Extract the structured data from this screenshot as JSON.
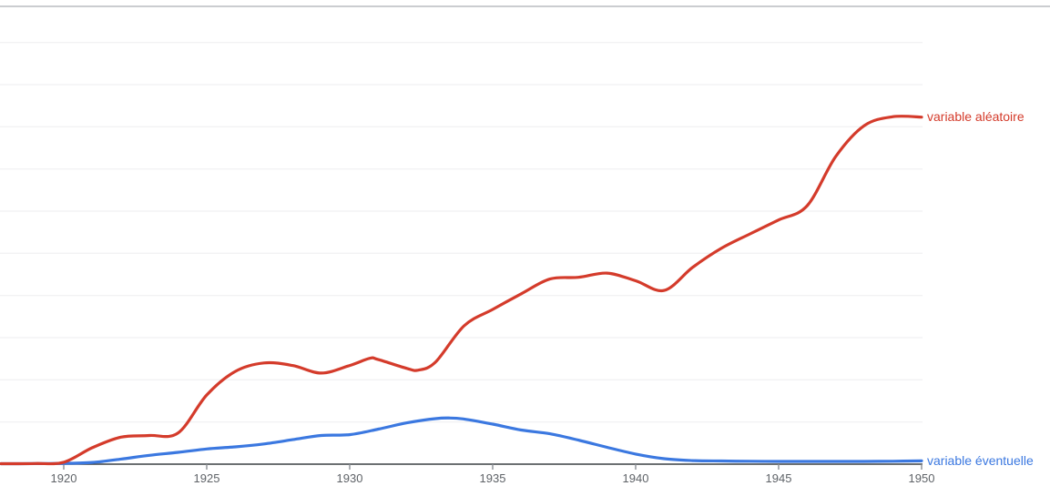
{
  "page": {
    "background": "#ffffff",
    "grid_color": "#ededef",
    "top_border_color": "#cbcdd0",
    "axis_color": "#3c4043",
    "tick_color": "#8a8f94",
    "tick_label_color": "#5f6368"
  },
  "chart_data": {
    "type": "line",
    "title": "",
    "xlabel": "",
    "ylabel": "",
    "x_axis": {
      "tick_labels": [
        "1920",
        "1925",
        "1930",
        "1935",
        "1940",
        "1945",
        "1950"
      ],
      "tick_years": [
        1920,
        1925,
        1930,
        1935,
        1940,
        1945,
        1950
      ],
      "range_years": [
        1917.8,
        1950
      ]
    },
    "y_axis": {
      "labels_visible": false,
      "grid": "on",
      "unit_note": "relative frequency in arbitrary units; 10 units = one gridline spacing",
      "ylim": [
        0,
        110
      ],
      "gridline_units": [
        10,
        20,
        30,
        40,
        50,
        60,
        70,
        80,
        90,
        100
      ]
    },
    "legend_position": "line-end-labels-right",
    "series": [
      {
        "name": "variable aléatoire",
        "color": "#d43b2b",
        "points": [
          [
            1917.8,
            0.1
          ],
          [
            1919.0,
            0.15
          ],
          [
            1920.0,
            0.45
          ],
          [
            1921.0,
            3.9
          ],
          [
            1922.0,
            6.4
          ],
          [
            1923.0,
            6.8
          ],
          [
            1924.0,
            7.4
          ],
          [
            1925.0,
            16.4
          ],
          [
            1926.0,
            22.0
          ],
          [
            1927.0,
            24.0
          ],
          [
            1928.0,
            23.4
          ],
          [
            1929.0,
            21.6
          ],
          [
            1930.0,
            23.4
          ],
          [
            1930.7,
            25.1
          ],
          [
            1931.0,
            24.8
          ],
          [
            1932.0,
            22.7
          ],
          [
            1932.4,
            22.3
          ],
          [
            1933.0,
            24.2
          ],
          [
            1934.0,
            32.8
          ],
          [
            1935.0,
            36.7
          ],
          [
            1936.0,
            40.4
          ],
          [
            1937.0,
            43.9
          ],
          [
            1938.0,
            44.3
          ],
          [
            1939.0,
            45.3
          ],
          [
            1940.0,
            43.5
          ],
          [
            1941.0,
            41.2
          ],
          [
            1942.0,
            46.7
          ],
          [
            1943.0,
            51.2
          ],
          [
            1944.0,
            54.6
          ],
          [
            1945.0,
            57.9
          ],
          [
            1946.0,
            61.3
          ],
          [
            1947.0,
            73.0
          ],
          [
            1948.0,
            80.3
          ],
          [
            1949.0,
            82.4
          ],
          [
            1950.0,
            82.3
          ]
        ]
      },
      {
        "name": "variable éventuelle",
        "color": "#3b78e0",
        "points": [
          [
            1917.8,
            0.1
          ],
          [
            1919.0,
            0.12
          ],
          [
            1920.0,
            0.2
          ],
          [
            1921.0,
            0.4
          ],
          [
            1922.0,
            1.2
          ],
          [
            1923.0,
            2.1
          ],
          [
            1924.0,
            2.8
          ],
          [
            1925.0,
            3.6
          ],
          [
            1926.0,
            4.1
          ],
          [
            1927.0,
            4.8
          ],
          [
            1928.0,
            5.8
          ],
          [
            1929.0,
            6.8
          ],
          [
            1930.0,
            7.0
          ],
          [
            1931.0,
            8.3
          ],
          [
            1932.0,
            9.8
          ],
          [
            1933.0,
            10.8
          ],
          [
            1933.5,
            10.95
          ],
          [
            1934.0,
            10.7
          ],
          [
            1935.0,
            9.5
          ],
          [
            1936.0,
            8.1
          ],
          [
            1937.0,
            7.2
          ],
          [
            1938.0,
            5.7
          ],
          [
            1939.0,
            4.0
          ],
          [
            1940.0,
            2.4
          ],
          [
            1941.0,
            1.3
          ],
          [
            1942.0,
            0.85
          ],
          [
            1943.0,
            0.75
          ],
          [
            1944.0,
            0.68
          ],
          [
            1945.0,
            0.65
          ],
          [
            1946.0,
            0.65
          ],
          [
            1947.0,
            0.65
          ],
          [
            1948.0,
            0.65
          ],
          [
            1949.0,
            0.7
          ],
          [
            1950.0,
            0.78
          ]
        ]
      }
    ]
  }
}
